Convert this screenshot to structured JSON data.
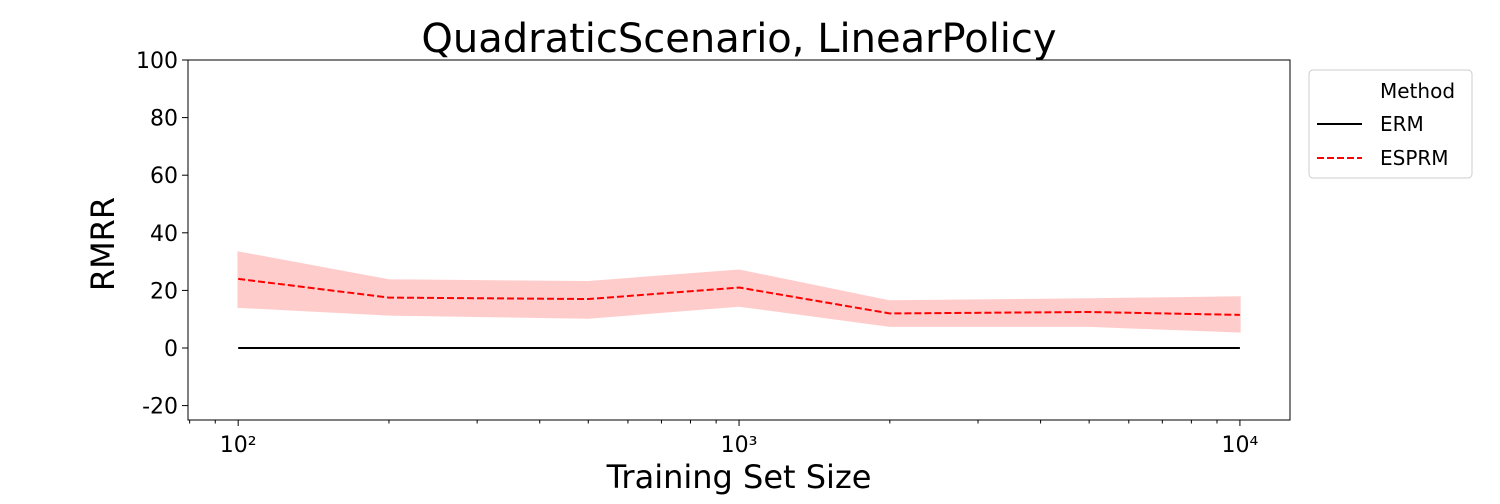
{
  "chart_data": {
    "type": "line",
    "title": "QuadraticScenario, LinearPolicy",
    "xlabel": "Training Set Size",
    "ylabel": "RMRR",
    "xscale": "log",
    "x": [
      100,
      200,
      500,
      1000,
      2000,
      5000,
      10000
    ],
    "series": [
      {
        "name": "ERM",
        "color": "#000000",
        "linestyle": "solid",
        "values": [
          0,
          0,
          0,
          0,
          0,
          0,
          0
        ]
      },
      {
        "name": "ESPRM",
        "color": "#ff0000",
        "linestyle": "dashed",
        "values": [
          24,
          17.5,
          17,
          21,
          12,
          12.5,
          11.5
        ],
        "band_lower": [
          14.2,
          11.5,
          10.4,
          14.6,
          7.6,
          7.6,
          5.6
        ],
        "band_upper": [
          33.3,
          23.6,
          23,
          27,
          16.3,
          17,
          17.7
        ],
        "band_color": "#ffcccc"
      }
    ],
    "xlim": [
      79.4,
      12589
    ],
    "ylim": [
      -25,
      100
    ],
    "xticks": [
      {
        "value": 100,
        "label": "10²"
      },
      {
        "value": 1000,
        "label": "10³"
      },
      {
        "value": 10000,
        "label": "10⁴"
      }
    ],
    "xminor_ticks": [
      80,
      90,
      200,
      300,
      400,
      500,
      600,
      700,
      800,
      900,
      2000,
      3000,
      4000,
      5000,
      6000,
      7000,
      8000,
      9000
    ],
    "yticks": [
      -20,
      0,
      20,
      40,
      60,
      80,
      100
    ],
    "grid": false,
    "legend_title": "Method",
    "legend_position": "outside-right"
  }
}
